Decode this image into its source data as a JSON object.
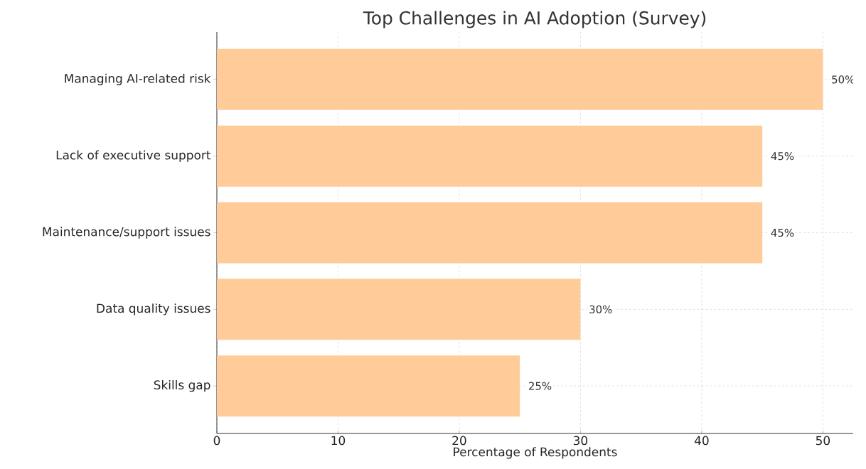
{
  "chart_data": {
    "type": "bar",
    "orientation": "horizontal",
    "title": "Top Challenges in AI Adoption (Survey)",
    "xlabel": "Percentage of Respondents",
    "categories": [
      "Managing AI-related risk",
      "Lack of executive support",
      "Maintenance/support issues",
      "Data quality issues",
      "Skills gap"
    ],
    "values": [
      50,
      45,
      45,
      30,
      25
    ],
    "value_labels": [
      "50%",
      "45%",
      "45%",
      "30%",
      "25%"
    ],
    "color": "#ffcc99",
    "xlim": [
      0,
      52.5
    ],
    "xticks": [
      0,
      10,
      20,
      30,
      40,
      50
    ],
    "grid": true
  }
}
